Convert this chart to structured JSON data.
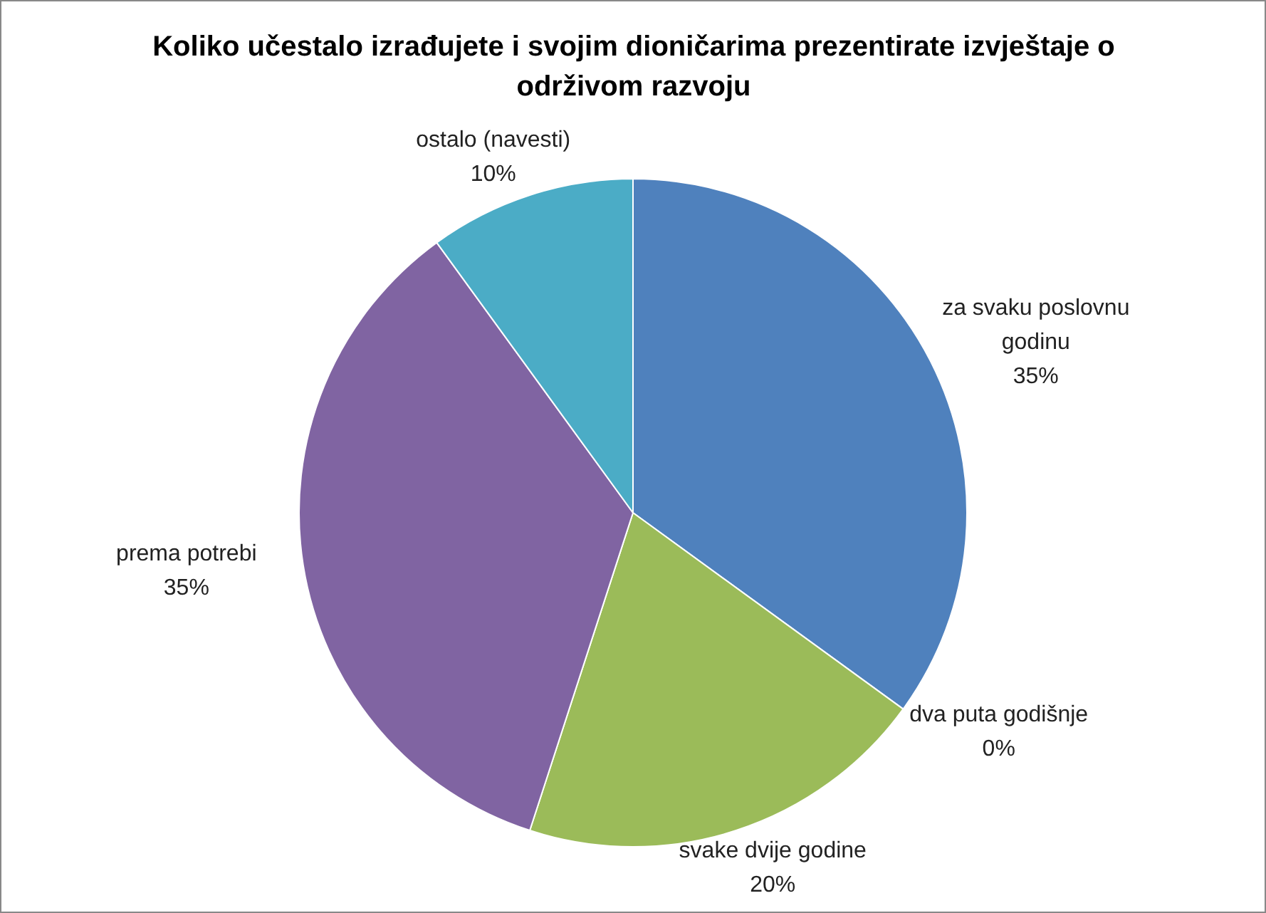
{
  "chart_data": {
    "type": "pie",
    "title": "Koliko učestalo izrađujete i svojim dioničarima prezentirate izvještaje o održivom razvoju",
    "categories": [
      "za svaku poslovnu godinu",
      "dva puta godišnje",
      "svake dvije godine",
      "prema potrebi",
      "ostalo (navesti)"
    ],
    "values": [
      35,
      0,
      20,
      35,
      10
    ],
    "colors": [
      "#4f81bd",
      "#c0504d",
      "#9bbb59",
      "#8064a2",
      "#4bacc6"
    ],
    "value_labels": [
      "35%",
      "0%",
      "20%",
      "35%",
      "10%"
    ],
    "legend": false
  }
}
